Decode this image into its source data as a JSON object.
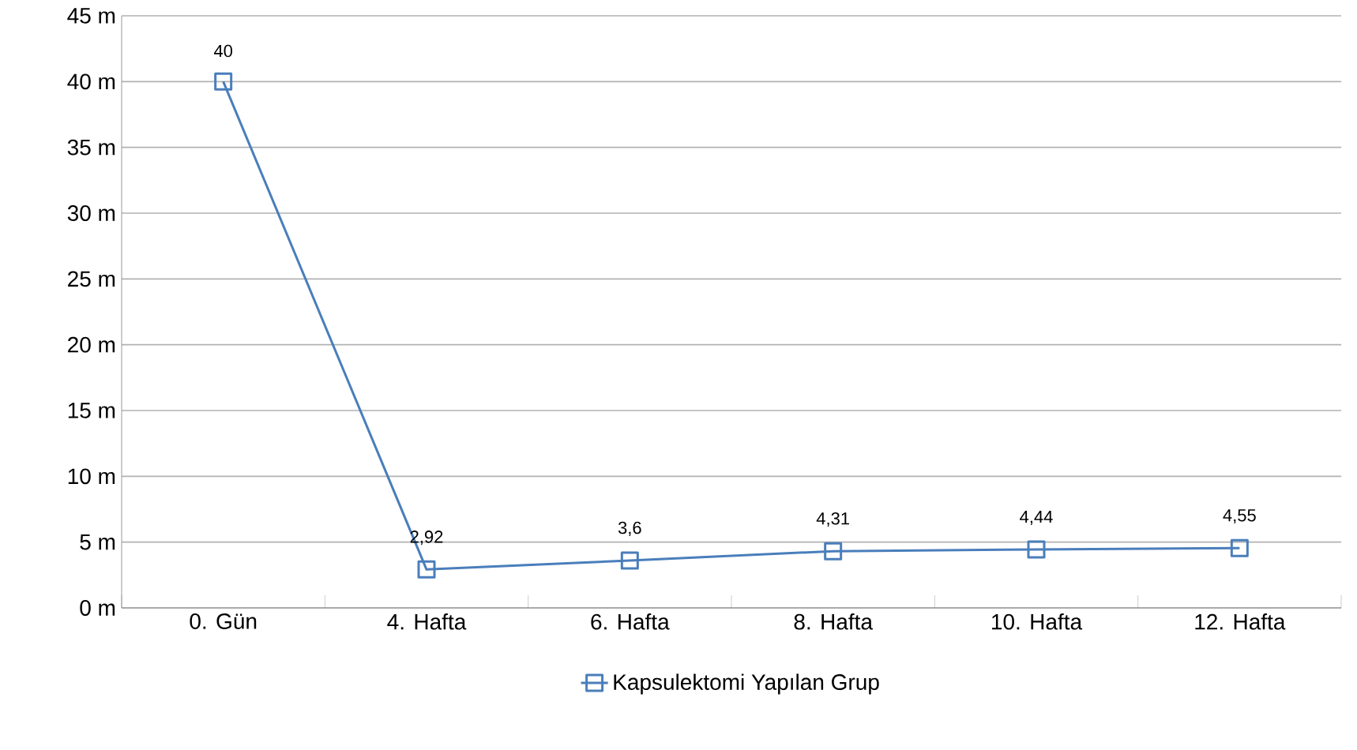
{
  "chart_data": {
    "type": "line",
    "categories": [
      "0. Gün",
      "4. Hafta",
      "6. Hafta",
      "8. Hafta",
      "10. Hafta",
      "12. Hafta"
    ],
    "series": [
      {
        "name": "Kapsulektomi Yapılan Grup",
        "color": "#4a7ebb",
        "values": [
          40,
          2.92,
          3.6,
          4.31,
          4.44,
          4.55
        ],
        "value_labels": [
          "40",
          "2,92",
          "3,6",
          "4,31",
          "4,44",
          "4,55"
        ]
      }
    ],
    "ylim": [
      0,
      45
    ],
    "yticks": [
      {
        "value": 0,
        "label": "0 m"
      },
      {
        "value": 5,
        "label": "5 m"
      },
      {
        "value": 10,
        "label": "10 m"
      },
      {
        "value": 15,
        "label": "15 m"
      },
      {
        "value": 20,
        "label": "20 m"
      },
      {
        "value": 25,
        "label": "25 m"
      },
      {
        "value": 30,
        "label": "30 m"
      },
      {
        "value": 35,
        "label": "35 m"
      },
      {
        "value": 40,
        "label": "40 m"
      },
      {
        "value": 45,
        "label": "45 m"
      }
    ],
    "grid": "y",
    "legend": "bottom",
    "marker": "square",
    "line_style": "solid"
  }
}
